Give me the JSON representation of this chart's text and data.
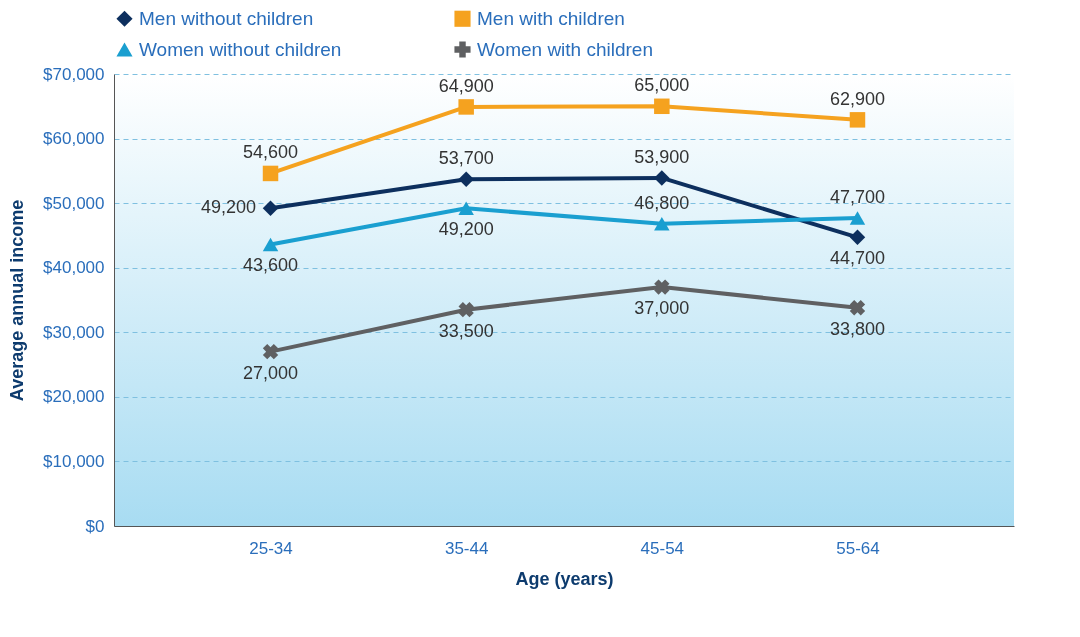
{
  "chart_data": {
    "type": "line",
    "xlabel": "Age (years)",
    "ylabel": "Average annual income",
    "categories": [
      "25-34",
      "35-44",
      "45-54",
      "55-64"
    ],
    "series": [
      {
        "name": "Men without children",
        "color": "#0d2f5e",
        "marker": "diamond",
        "values": [
          49200,
          53700,
          53900,
          44700
        ],
        "value_labels": [
          "49,200",
          "53,700",
          "53,900",
          "44,700"
        ]
      },
      {
        "name": "Men with children",
        "color": "#f5a21f",
        "marker": "square",
        "values": [
          54600,
          64900,
          65000,
          62900
        ],
        "value_labels": [
          "54,600",
          "64,900",
          "65,000",
          "62,900"
        ]
      },
      {
        "name": "Women without children",
        "color": "#1a9fd0",
        "marker": "triangle",
        "values": [
          43600,
          49200,
          46800,
          47700
        ],
        "value_labels": [
          "43,600",
          "49,200",
          "46,800",
          "47,700"
        ]
      },
      {
        "name": "Women with children",
        "color": "#5f6062",
        "marker": "cross",
        "values": [
          27000,
          33500,
          37000,
          33800
        ],
        "value_labels": [
          "27,000",
          "33,500",
          "37,000",
          "33,800"
        ]
      }
    ],
    "ylim": [
      0,
      70000
    ],
    "yticks": [
      {
        "value": 0,
        "label": "$0"
      },
      {
        "value": 10000,
        "label": "$10,000"
      },
      {
        "value": 20000,
        "label": "$20,000"
      },
      {
        "value": 30000,
        "label": "$30,000"
      },
      {
        "value": 40000,
        "label": "$40,000"
      },
      {
        "value": 50000,
        "label": "$50,000"
      },
      {
        "value": 60000,
        "label": "$60,000"
      },
      {
        "value": 70000,
        "label": "$70,000"
      }
    ],
    "grid": "y",
    "legend": "top",
    "line_style": "solid"
  }
}
